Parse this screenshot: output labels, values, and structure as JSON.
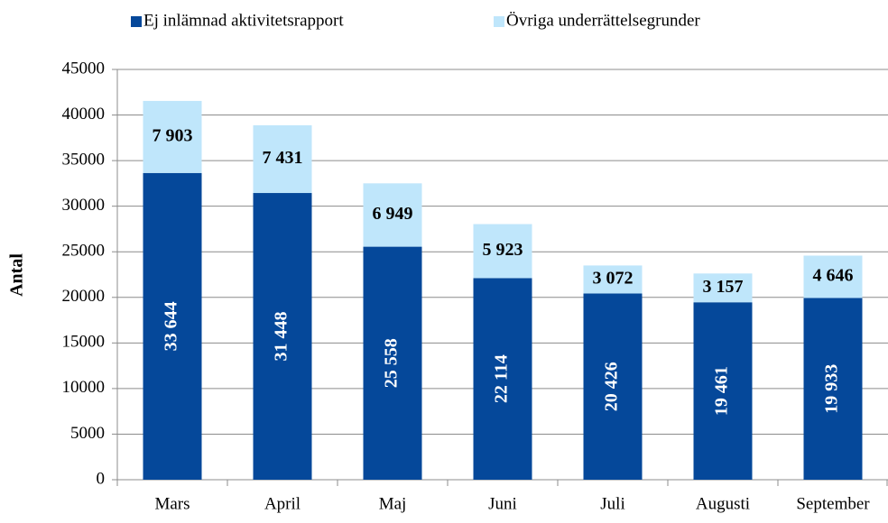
{
  "chart_data": {
    "type": "stacked_bar",
    "categories": [
      "Mars",
      "April",
      "Maj",
      "Juni",
      "Juli",
      "Augusti",
      "September"
    ],
    "series": [
      {
        "name": "Ej inlämnad aktivitetsrapport",
        "color": "#05489a",
        "values": [
          33644,
          31448,
          25558,
          22114,
          20426,
          19461,
          19933
        ],
        "value_labels": [
          "33 644",
          "31 448",
          "25 558",
          "22 114",
          "20 426",
          "19 461",
          "19 933"
        ]
      },
      {
        "name": "Övriga underrättelsegrunder",
        "color": "#bfe6fb",
        "values": [
          7903,
          7431,
          6949,
          5923,
          3072,
          3157,
          4646
        ],
        "value_labels": [
          "7 903",
          "7 431",
          "6 949",
          "5 923",
          "3 072",
          "3 157",
          "4 646"
        ]
      }
    ],
    "y_label": "Antal",
    "ylim": [
      0,
      45000
    ],
    "yticks": [
      0,
      5000,
      10000,
      15000,
      20000,
      25000,
      30000,
      35000,
      40000,
      45000
    ],
    "grid": true
  }
}
